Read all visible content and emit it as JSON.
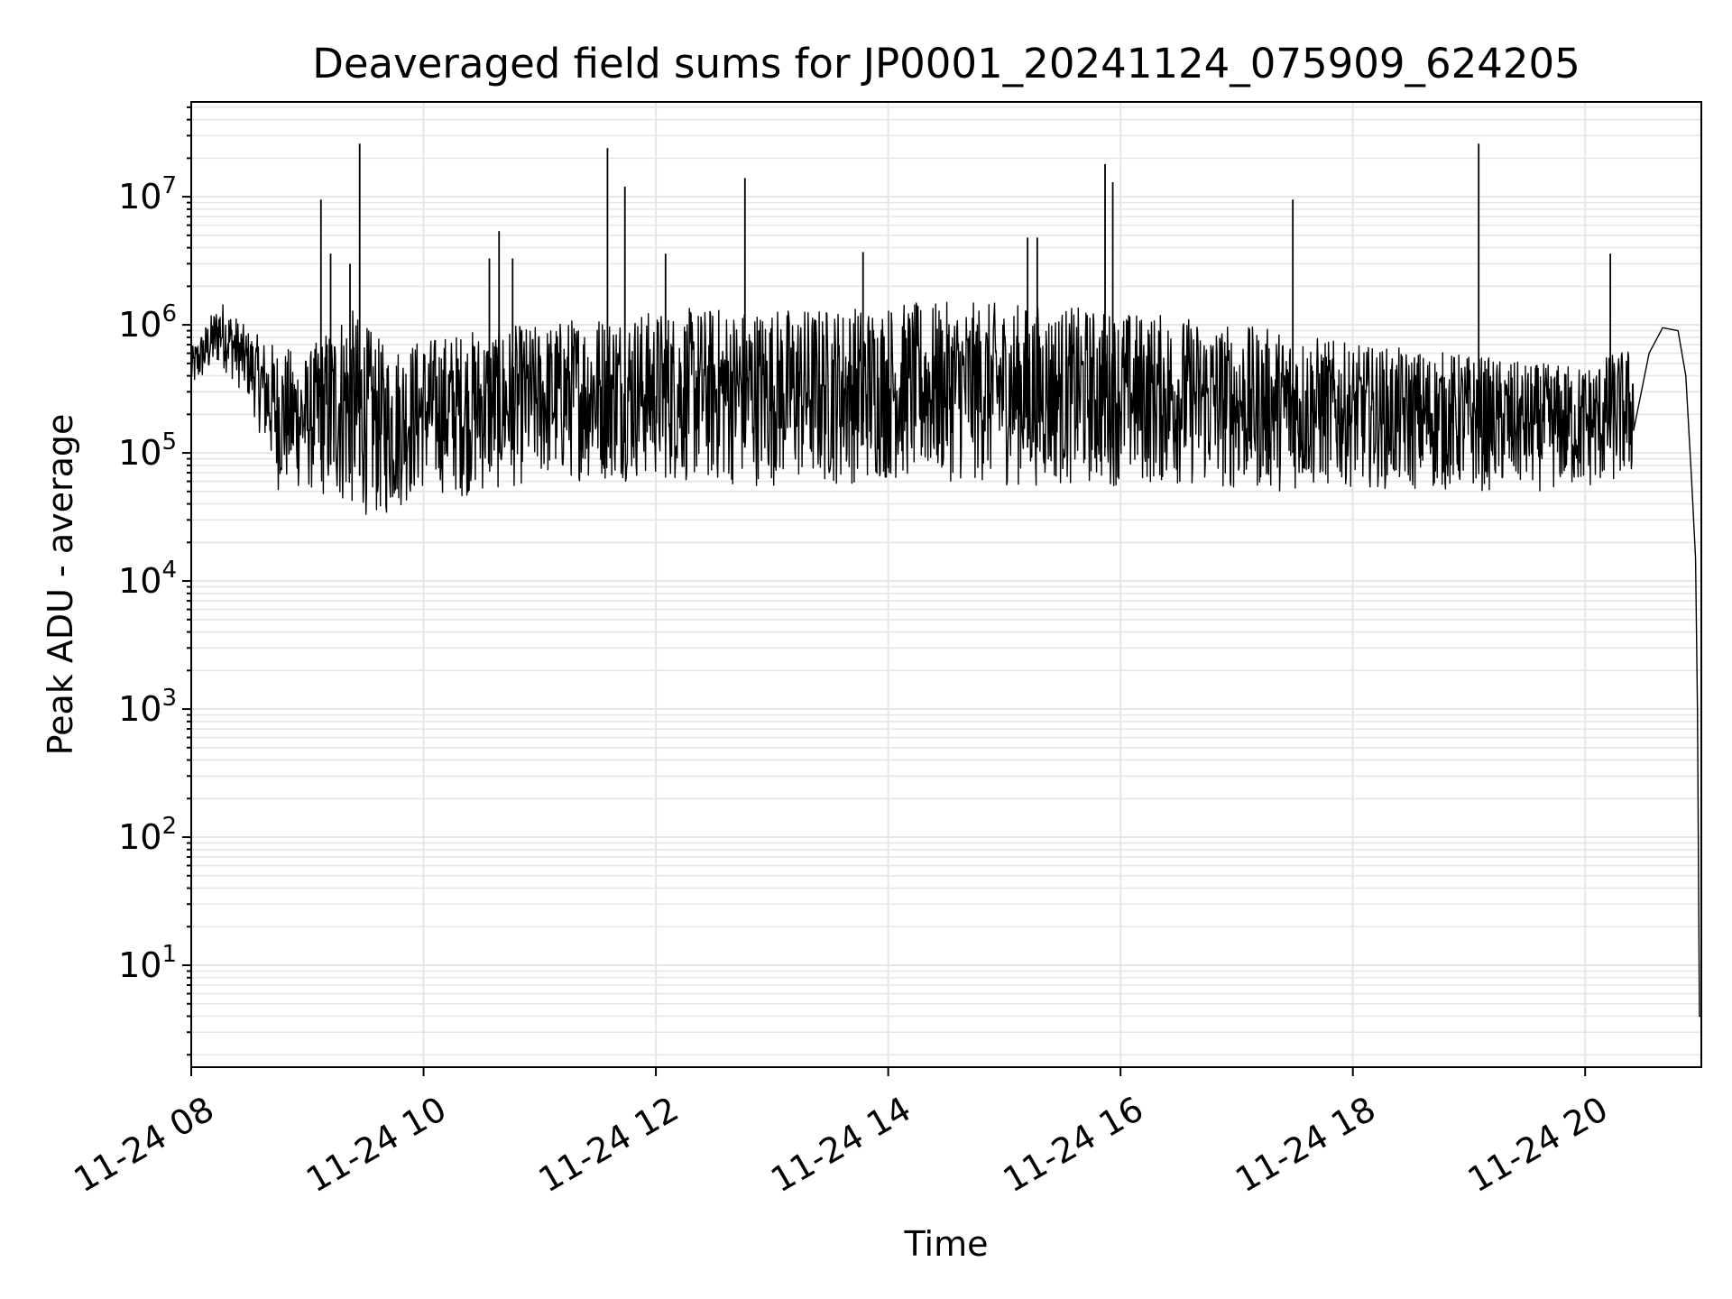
{
  "chart_data": {
    "type": "line",
    "title": "Deaveraged field sums for JP0001_20241124_075909_624205",
    "xlabel": "Time",
    "ylabel": "Peak ADU - average",
    "yscale": "log",
    "grid": true,
    "line_color": "#000000",
    "grid_color": "#e6e6e6",
    "xlim": [
      "2024-11-24 08:00",
      "2024-11-24 21:00"
    ],
    "ylim": [
      1.6,
      55000000
    ],
    "xticks": [
      {
        "value": "2024-11-24 08:00",
        "label": "11-24 08"
      },
      {
        "value": "2024-11-24 10:00",
        "label": "11-24 10"
      },
      {
        "value": "2024-11-24 12:00",
        "label": "11-24 12"
      },
      {
        "value": "2024-11-24 14:00",
        "label": "11-24 14"
      },
      {
        "value": "2024-11-24 16:00",
        "label": "11-24 16"
      },
      {
        "value": "2024-11-24 18:00",
        "label": "11-24 18"
      },
      {
        "value": "2024-11-24 20:00",
        "label": "11-24 20"
      }
    ],
    "yticks": [
      {
        "value": 10,
        "base": "10",
        "exp": "1"
      },
      {
        "value": 100,
        "base": "10",
        "exp": "2"
      },
      {
        "value": 1000,
        "base": "10",
        "exp": "3"
      },
      {
        "value": 10000,
        "base": "10",
        "exp": "4"
      },
      {
        "value": 100000,
        "base": "10",
        "exp": "5"
      },
      {
        "value": 1000000,
        "base": "10",
        "exp": "6"
      },
      {
        "value": 10000000,
        "base": "10",
        "exp": "7"
      }
    ],
    "spikes": [
      {
        "x": "2024-11-24 09:07",
        "y": 9500000
      },
      {
        "x": "2024-11-24 09:12",
        "y": 3600000
      },
      {
        "x": "2024-11-24 09:22",
        "y": 3000000
      },
      {
        "x": "2024-11-24 09:27",
        "y": 26000000
      },
      {
        "x": "2024-11-24 10:34",
        "y": 3300000
      },
      {
        "x": "2024-11-24 10:39",
        "y": 5400000
      },
      {
        "x": "2024-11-24 10:46",
        "y": 3300000
      },
      {
        "x": "2024-11-24 11:35",
        "y": 24000000
      },
      {
        "x": "2024-11-24 11:44",
        "y": 12000000
      },
      {
        "x": "2024-11-24 12:05",
        "y": 3600000
      },
      {
        "x": "2024-11-24 12:46",
        "y": 14000000
      },
      {
        "x": "2024-11-24 13:47",
        "y": 3700000
      },
      {
        "x": "2024-11-24 15:12",
        "y": 4800000
      },
      {
        "x": "2024-11-24 15:17",
        "y": 4800000
      },
      {
        "x": "2024-11-24 15:52",
        "y": 18000000
      },
      {
        "x": "2024-11-24 15:56",
        "y": 13000000
      },
      {
        "x": "2024-11-24 17:29",
        "y": 9500000
      },
      {
        "x": "2024-11-24 19:05",
        "y": 26000000
      },
      {
        "x": "2024-11-24 20:13",
        "y": 3600000
      }
    ],
    "envelope": [
      {
        "x": "2024-11-24 08:00",
        "low": 300000,
        "high": 650000
      },
      {
        "x": "2024-11-24 08:15",
        "low": 480000,
        "high": 1600000
      },
      {
        "x": "2024-11-24 08:30",
        "low": 250000,
        "high": 900000
      },
      {
        "x": "2024-11-24 08:45",
        "low": 50000,
        "high": 700000
      },
      {
        "x": "2024-11-24 09:00",
        "low": 50000,
        "high": 600000
      },
      {
        "x": "2024-11-24 09:20",
        "low": 35000,
        "high": 1500000
      },
      {
        "x": "2024-11-24 09:40",
        "low": 30000,
        "high": 700000
      },
      {
        "x": "2024-11-24 10:00",
        "low": 50000,
        "high": 800000
      },
      {
        "x": "2024-11-24 10:20",
        "low": 45000,
        "high": 900000
      },
      {
        "x": "2024-11-24 10:40",
        "low": 50000,
        "high": 1000000
      },
      {
        "x": "2024-11-24 11:00",
        "low": 60000,
        "high": 1000000
      },
      {
        "x": "2024-11-24 11:20",
        "low": 60000,
        "high": 1200000
      },
      {
        "x": "2024-11-24 11:40",
        "low": 60000,
        "high": 1300000
      },
      {
        "x": "2024-11-24 12:00",
        "low": 60000,
        "high": 1300000
      },
      {
        "x": "2024-11-24 12:30",
        "low": 55000,
        "high": 1400000
      },
      {
        "x": "2024-11-24 13:00",
        "low": 55000,
        "high": 1400000
      },
      {
        "x": "2024-11-24 13:30",
        "low": 55000,
        "high": 1400000
      },
      {
        "x": "2024-11-24 14:00",
        "low": 60000,
        "high": 1500000
      },
      {
        "x": "2024-11-24 14:30",
        "low": 60000,
        "high": 1500000
      },
      {
        "x": "2024-11-24 15:00",
        "low": 55000,
        "high": 1500000
      },
      {
        "x": "2024-11-24 15:30",
        "low": 55000,
        "high": 1400000
      },
      {
        "x": "2024-11-24 16:00",
        "low": 55000,
        "high": 1300000
      },
      {
        "x": "2024-11-24 16:30",
        "low": 55000,
        "high": 1200000
      },
      {
        "x": "2024-11-24 17:00",
        "low": 50000,
        "high": 1000000
      },
      {
        "x": "2024-11-24 17:30",
        "low": 50000,
        "high": 900000
      },
      {
        "x": "2024-11-24 18:00",
        "low": 55000,
        "high": 700000
      },
      {
        "x": "2024-11-24 18:30",
        "low": 50000,
        "high": 650000
      },
      {
        "x": "2024-11-24 19:00",
        "low": 50000,
        "high": 600000
      },
      {
        "x": "2024-11-24 19:30",
        "low": 50000,
        "high": 500000
      },
      {
        "x": "2024-11-24 20:00",
        "low": 50000,
        "high": 500000
      },
      {
        "x": "2024-11-24 20:25",
        "low": 60000,
        "high": 700000
      }
    ],
    "tail": [
      {
        "x": "2024-11-24 20:25",
        "y": 150000
      },
      {
        "x": "2024-11-24 20:33",
        "y": 600000
      },
      {
        "x": "2024-11-24 20:40",
        "y": 950000
      },
      {
        "x": "2024-11-24 20:48",
        "y": 900000
      },
      {
        "x": "2024-11-24 20:52",
        "y": 400000
      },
      {
        "x": "2024-11-24 20:55",
        "y": 60000
      },
      {
        "x": "2024-11-24 20:57",
        "y": 15000
      },
      {
        "x": "2024-11-24 20:58",
        "y": 1000
      },
      {
        "x": "2024-11-24 20:59",
        "y": 4
      },
      {
        "x": "2024-11-24 21:00",
        "y": 4
      }
    ]
  }
}
